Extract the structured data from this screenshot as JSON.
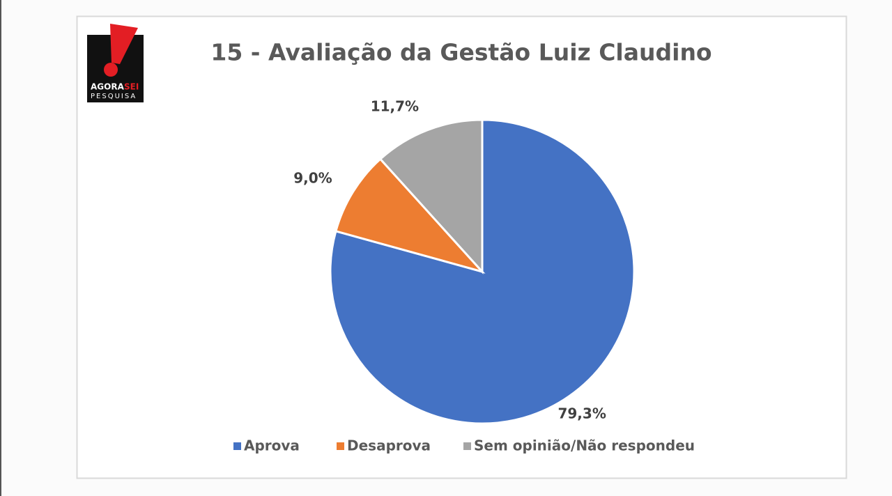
{
  "logo": {
    "word1": "AGORA",
    "word2": "SEI",
    "word3": "PESQUISA"
  },
  "chart_data": {
    "type": "pie",
    "title": "15 - Avaliação da Gestão Luiz Claudino",
    "categories": [
      "Aprova",
      "Desaprova",
      "Sem opinião/Não respondeu"
    ],
    "values": [
      79.3,
      9.0,
      11.7
    ],
    "value_labels": [
      "79,3%",
      "9,0%",
      "11,7%"
    ],
    "colors": [
      "#4472c4",
      "#ed7d31",
      "#a5a5a5"
    ],
    "legend": "bottom"
  }
}
